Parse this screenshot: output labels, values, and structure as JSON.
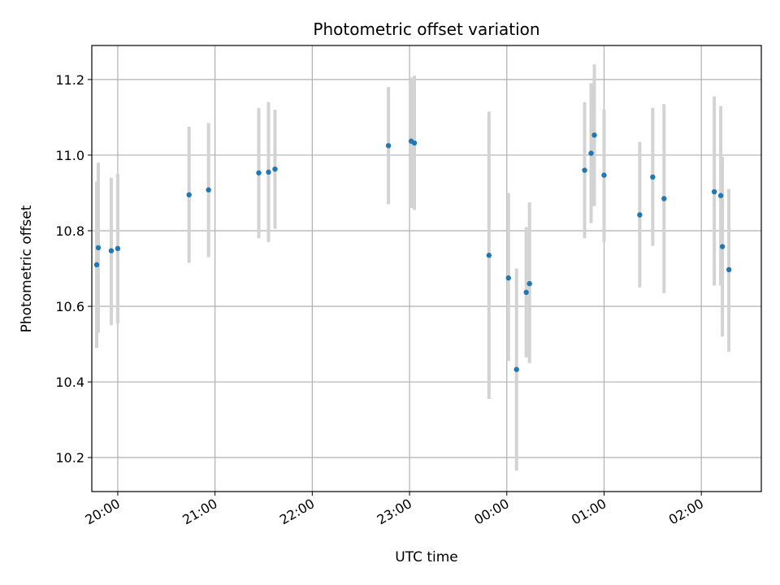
{
  "chart_data": {
    "type": "scatter",
    "title": "Photometric offset variation",
    "xlabel": "UTC time",
    "ylabel": "Photometric offset",
    "x_axis_kind": "time",
    "xlim": [
      "19:44",
      "02:37"
    ],
    "ylim": [
      10.11,
      11.29
    ],
    "grid": true,
    "x_ticks": [
      "20:00",
      "21:00",
      "22:00",
      "23:00",
      "00:00",
      "01:00",
      "02:00"
    ],
    "y_ticks": [
      10.2,
      10.4,
      10.6,
      10.8,
      11.0,
      11.2
    ],
    "point_color": "#1f77b4",
    "errorbar_color": "#d3d3d3",
    "points": [
      {
        "t": "19:47",
        "y": 10.71,
        "ylo": 10.49,
        "yhi": 10.93
      },
      {
        "t": "19:48",
        "y": 10.755,
        "ylo": 10.53,
        "yhi": 10.98
      },
      {
        "t": "19:56",
        "y": 10.747,
        "ylo": 10.55,
        "yhi": 10.94
      },
      {
        "t": "20:00",
        "y": 10.753,
        "ylo": 10.555,
        "yhi": 10.95
      },
      {
        "t": "20:44",
        "y": 10.895,
        "ylo": 10.715,
        "yhi": 11.075
      },
      {
        "t": "20:56",
        "y": 10.908,
        "ylo": 10.73,
        "yhi": 11.085
      },
      {
        "t": "21:27",
        "y": 10.953,
        "ylo": 10.78,
        "yhi": 11.125
      },
      {
        "t": "21:33",
        "y": 10.955,
        "ylo": 10.77,
        "yhi": 11.14
      },
      {
        "t": "21:37",
        "y": 10.963,
        "ylo": 10.805,
        "yhi": 11.12
      },
      {
        "t": "22:47",
        "y": 11.025,
        "ylo": 10.87,
        "yhi": 11.18
      },
      {
        "t": "23:01",
        "y": 11.037,
        "ylo": 10.86,
        "yhi": 11.205
      },
      {
        "t": "23:03",
        "y": 11.032,
        "ylo": 10.855,
        "yhi": 11.21
      },
      {
        "t": "23:49",
        "y": 10.735,
        "ylo": 10.355,
        "yhi": 11.115
      },
      {
        "t": "00:01",
        "y": 10.675,
        "ylo": 10.455,
        "yhi": 10.9
      },
      {
        "t": "00:06",
        "y": 10.433,
        "ylo": 10.165,
        "yhi": 10.7
      },
      {
        "t": "00:12",
        "y": 10.637,
        "ylo": 10.465,
        "yhi": 10.81
      },
      {
        "t": "00:14",
        "y": 10.66,
        "ylo": 10.45,
        "yhi": 10.875
      },
      {
        "t": "00:48",
        "y": 10.96,
        "ylo": 10.78,
        "yhi": 11.14
      },
      {
        "t": "00:52",
        "y": 11.005,
        "ylo": 10.82,
        "yhi": 11.19
      },
      {
        "t": "00:54",
        "y": 11.053,
        "ylo": 10.865,
        "yhi": 11.24
      },
      {
        "t": "01:00",
        "y": 10.947,
        "ylo": 10.77,
        "yhi": 11.12
      },
      {
        "t": "01:22",
        "y": 10.842,
        "ylo": 10.65,
        "yhi": 11.035
      },
      {
        "t": "01:30",
        "y": 10.942,
        "ylo": 10.76,
        "yhi": 11.125
      },
      {
        "t": "01:37",
        "y": 10.885,
        "ylo": 10.635,
        "yhi": 11.135
      },
      {
        "t": "02:08",
        "y": 10.903,
        "ylo": 10.655,
        "yhi": 11.155
      },
      {
        "t": "02:12",
        "y": 10.893,
        "ylo": 10.655,
        "yhi": 11.13
      },
      {
        "t": "02:13",
        "y": 10.758,
        "ylo": 10.52,
        "yhi": 10.995
      },
      {
        "t": "02:17",
        "y": 10.697,
        "ylo": 10.48,
        "yhi": 10.91
      }
    ]
  }
}
